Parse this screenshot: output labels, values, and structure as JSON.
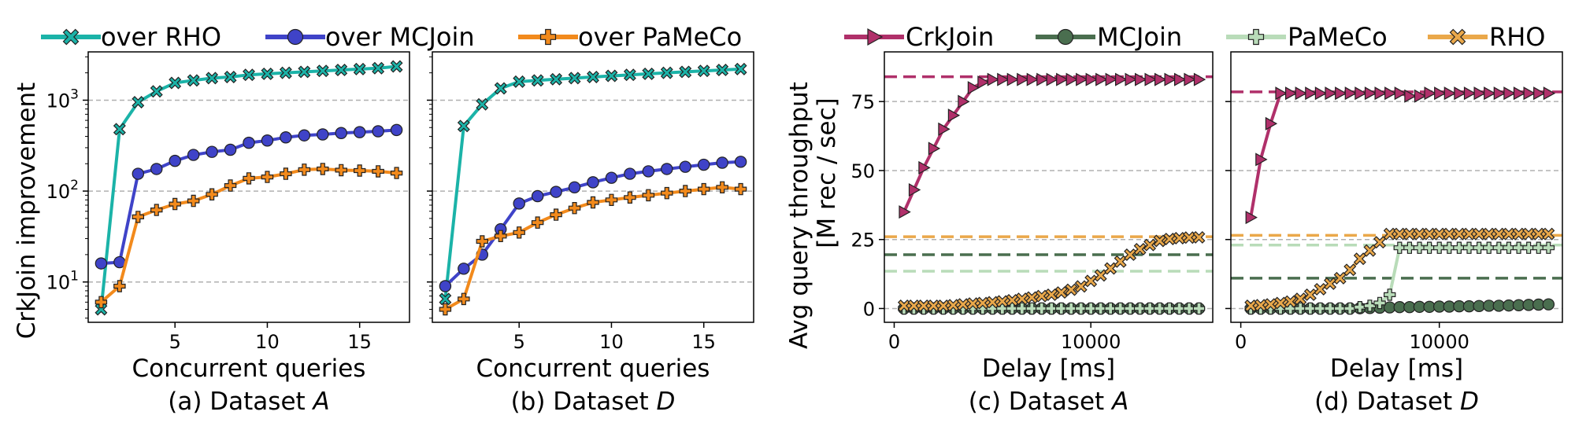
{
  "figure_left": {
    "legend": [
      {
        "label": "over RHO",
        "color": "#1bb3a8",
        "marker": "x-filled"
      },
      {
        "label": "over MCJoin",
        "color": "#3f43c8",
        "marker": "circle"
      },
      {
        "label": "over PaMeCo",
        "color": "#f28a1c",
        "marker": "plus-filled"
      }
    ],
    "ylabel": "CrkJoin improvement"
  },
  "figure_right": {
    "legend": [
      {
        "label": "CrkJoin",
        "color": "#b0306a",
        "marker": "triangle-right"
      },
      {
        "label": "MCJoin",
        "color": "#4a6e4f",
        "marker": "circle"
      },
      {
        "label": "PaMeCo",
        "color": "#b9dcb9",
        "marker": "plus-filled"
      },
      {
        "label": "RHO",
        "color": "#eaa84a",
        "marker": "x-filled"
      }
    ],
    "ylabel_line1": "Avg query throughput",
    "ylabel_line2": "[M rec / sec]"
  },
  "chart_data": [
    {
      "id": "a",
      "type": "line",
      "caption": "(a) Dataset A",
      "xlabel": "Concurrent queries",
      "ylabel": "CrkJoin improvement",
      "yscale": "log",
      "xlim": [
        0.3,
        17.7
      ],
      "ylim": [
        3.6,
        3400
      ],
      "xticks": [
        5,
        10,
        15
      ],
      "yticks": [
        {
          "value": 10,
          "base": "10",
          "exp": "1"
        },
        {
          "value": 100,
          "base": "10",
          "exp": "2"
        },
        {
          "value": 1000,
          "base": "10",
          "exp": "3"
        }
      ],
      "grid": "y-dashed",
      "x": [
        1,
        2,
        3,
        4,
        5,
        6,
        7,
        8,
        9,
        10,
        11,
        12,
        13,
        14,
        15,
        16,
        17
      ],
      "series": [
        {
          "name": "over RHO",
          "values": [
            5,
            480,
            950,
            1250,
            1550,
            1650,
            1750,
            1800,
            1900,
            1950,
            2000,
            2050,
            2100,
            2150,
            2200,
            2250,
            2350
          ]
        },
        {
          "name": "over MCJoin",
          "values": [
            16,
            16.5,
            155,
            175,
            215,
            250,
            270,
            285,
            340,
            360,
            390,
            410,
            420,
            435,
            445,
            455,
            470
          ]
        },
        {
          "name": "over PaMeCo",
          "values": [
            6,
            9,
            52,
            62,
            72,
            78,
            92,
            115,
            138,
            143,
            155,
            172,
            175,
            170,
            168,
            165,
            158
          ]
        }
      ]
    },
    {
      "id": "b",
      "type": "line",
      "caption": "(b) Dataset D",
      "xlabel": "Concurrent queries",
      "yscale": "log",
      "xlim": [
        0.3,
        17.7
      ],
      "ylim": [
        3.6,
        3400
      ],
      "xticks": [
        5,
        10,
        15
      ],
      "grid": "y-dashed",
      "x": [
        1,
        2,
        3,
        4,
        5,
        6,
        7,
        8,
        9,
        10,
        11,
        12,
        13,
        14,
        15,
        16,
        17
      ],
      "series": [
        {
          "name": "over RHO",
          "values": [
            6.5,
            520,
            900,
            1350,
            1600,
            1650,
            1700,
            1750,
            1800,
            1850,
            1900,
            1950,
            2000,
            2050,
            2100,
            2150,
            2200
          ]
        },
        {
          "name": "over MCJoin",
          "values": [
            9,
            14,
            20,
            38,
            73,
            88,
            98,
            110,
            125,
            140,
            155,
            165,
            175,
            185,
            195,
            205,
            210
          ]
        },
        {
          "name": "over PaMeCo",
          "values": [
            5,
            6.5,
            28,
            32,
            35,
            45,
            55,
            65,
            75,
            80,
            85,
            90,
            95,
            100,
            105,
            110,
            105
          ]
        }
      ]
    },
    {
      "id": "c",
      "type": "line",
      "caption": "(c) Dataset A",
      "xlabel": "Delay  [ms]",
      "ylabel": "Avg query throughput [M rec / sec]",
      "xlim": [
        -500,
        16200
      ],
      "ylim": [
        -5,
        93
      ],
      "xticks": [
        0,
        10000
      ],
      "yticks": [
        0,
        25,
        50,
        75
      ],
      "grid": "y-dashed",
      "x": [
        500,
        1000,
        1500,
        2000,
        2500,
        3000,
        3500,
        4000,
        4500,
        5000,
        5500,
        6000,
        6500,
        7000,
        7500,
        8000,
        8500,
        9000,
        9500,
        10000,
        10500,
        11000,
        11500,
        12000,
        12500,
        13000,
        13500,
        14000,
        14500,
        15000,
        15500
      ],
      "series": [
        {
          "name": "CrkJoin",
          "values": [
            35,
            43,
            51,
            58,
            65,
            70,
            75,
            80,
            82,
            83,
            83,
            83,
            83,
            83,
            83,
            83,
            83,
            83,
            83,
            83,
            83,
            83,
            83,
            83,
            83,
            83,
            83,
            83,
            83,
            83,
            83
          ]
        },
        {
          "name": "MCJoin",
          "values": [
            0,
            0,
            0,
            0,
            0,
            0,
            0,
            0,
            0,
            0,
            0,
            0,
            0,
            0,
            0,
            0,
            0,
            0,
            0,
            0,
            0,
            0,
            0,
            0,
            0,
            0,
            0,
            0,
            0,
            0,
            0
          ]
        },
        {
          "name": "PaMeCo",
          "values": [
            0,
            0,
            0,
            0,
            0,
            0,
            0,
            0,
            0,
            0,
            0,
            0,
            0,
            0,
            0,
            0,
            0,
            0,
            0,
            0,
            0,
            0,
            0,
            0,
            0,
            0,
            0,
            0,
            0,
            0,
            0
          ]
        },
        {
          "name": "RHO",
          "values": [
            1,
            1,
            1,
            1,
            1,
            1.2,
            1.5,
            1.8,
            2,
            2.3,
            2.6,
            3,
            3.5,
            4,
            4.5,
            5,
            5.8,
            6.8,
            8,
            10,
            12,
            14.5,
            17,
            19.5,
            21.5,
            23,
            24.5,
            25.2,
            25.5,
            25.7,
            25.8
          ]
        }
      ],
      "reference_lines": [
        {
          "series": "CrkJoin",
          "value": 84
        },
        {
          "series": "RHO",
          "value": 26
        },
        {
          "series": "MCJoin",
          "value": 19.5
        },
        {
          "series": "PaMeCo",
          "value": 13.5
        }
      ]
    },
    {
      "id": "d",
      "type": "line",
      "caption": "(d) Dataset D",
      "xlabel": "Delay  [ms]",
      "xlim": [
        -500,
        16200
      ],
      "ylim": [
        -5,
        93
      ],
      "xticks": [
        0,
        10000
      ],
      "grid": "y-dashed",
      "x": [
        500,
        1000,
        1500,
        2000,
        2500,
        3000,
        3500,
        4000,
        4500,
        5000,
        5500,
        6000,
        6500,
        7000,
        7500,
        8000,
        8500,
        9000,
        9500,
        10000,
        10500,
        11000,
        11500,
        12000,
        12500,
        13000,
        13500,
        14000,
        14500,
        15000,
        15500
      ],
      "series": [
        {
          "name": "CrkJoin",
          "values": [
            33,
            54,
            67,
            78,
            78,
            78,
            78,
            78,
            78,
            78,
            78,
            78,
            78,
            78,
            78,
            78,
            77,
            77,
            78,
            78,
            78,
            78,
            78,
            78,
            78,
            78,
            78,
            78,
            78,
            78,
            78
          ]
        },
        {
          "name": "MCJoin",
          "values": [
            0,
            0,
            0,
            0,
            0,
            0,
            0,
            0,
            0,
            0,
            0,
            0.1,
            0.2,
            0.3,
            0.4,
            0.5,
            0.5,
            0.6,
            0.6,
            0.7,
            0.7,
            0.8,
            0.8,
            0.9,
            1,
            1,
            1.1,
            1.2,
            1.3,
            1.4,
            1.5
          ]
        },
        {
          "name": "PaMeCo",
          "values": [
            0,
            0,
            0,
            0,
            0,
            0,
            0,
            0,
            0,
            0,
            0,
            0.5,
            1,
            2,
            5,
            22,
            22,
            22,
            22,
            22,
            22,
            22,
            22,
            22,
            22,
            22,
            22,
            22,
            22,
            22,
            22
          ]
        },
        {
          "name": "RHO",
          "values": [
            1,
            1.2,
            1.5,
            2,
            2.5,
            3.5,
            5,
            7,
            9,
            11,
            14,
            18,
            21,
            24,
            27,
            27,
            27,
            27,
            27,
            27,
            27,
            27,
            27,
            27,
            27,
            27,
            27,
            27,
            27,
            27,
            27
          ]
        }
      ],
      "reference_lines": [
        {
          "series": "CrkJoin",
          "value": 78.5
        },
        {
          "series": "RHO",
          "value": 26.5
        },
        {
          "series": "PaMeCo",
          "value": 23
        },
        {
          "series": "MCJoin",
          "value": 11
        }
      ]
    }
  ]
}
